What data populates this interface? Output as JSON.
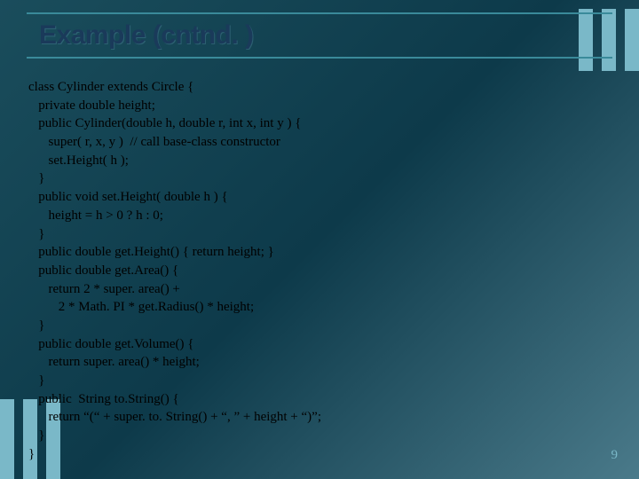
{
  "slide": {
    "title": "Example (cntnd. )",
    "page_number": "9",
    "colors": {
      "background_start": "#1a4d5c",
      "background_mid": "#0d3a4a",
      "background_end": "#4a7a8a",
      "rule_line": "#3a8a9a",
      "title_text": "#1a3a5a",
      "accent_stripe": "#7ab8c8",
      "code_text": "#000000",
      "page_num_text": "#7ab8c8"
    },
    "title_fontsize": 30,
    "code_fontsize": 15,
    "code_line_height": 1.38,
    "code_lines": [
      "class Cylinder extends Circle {",
      "   private double height;",
      "   public Cylinder(double h, double r, int x, int y ) {",
      "      super( r, x, y )  // call base-class constructor",
      "      set.Height( h );",
      "   }",
      "   public void set.Height( double h ) {",
      "      height = h > 0 ? h : 0;",
      "   }",
      "   public double get.Height() { return height; }",
      "   public double get.Area() {",
      "      return 2 * super. area() +",
      "         2 * Math. PI * get.Radius() * height;",
      "   }",
      "   public double get.Volume() {",
      "      return super. area() * height;",
      "   }",
      "   public  String to.String() {",
      "      return “(“ + super. to. String() + “, ” + height + “)”;",
      "   }",
      "}"
    ]
  }
}
